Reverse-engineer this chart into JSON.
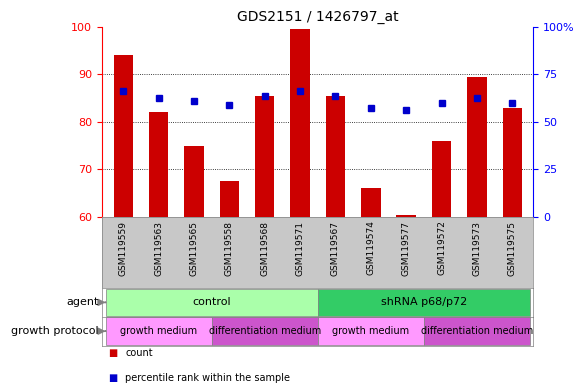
{
  "title": "GDS2151 / 1426797_at",
  "samples": [
    "GSM119559",
    "GSM119563",
    "GSM119565",
    "GSM119558",
    "GSM119568",
    "GSM119571",
    "GSM119567",
    "GSM119574",
    "GSM119577",
    "GSM119572",
    "GSM119573",
    "GSM119575"
  ],
  "bar_values": [
    94,
    82,
    75,
    67.5,
    85.5,
    99.5,
    85.5,
    66,
    60.5,
    76,
    89.5,
    83
  ],
  "dot_values": [
    86.5,
    85,
    84.5,
    83.5,
    85.5,
    86.5,
    85.5,
    83,
    82.5,
    84,
    85,
    84
  ],
  "ylim": [
    60,
    100
  ],
  "y2lim": [
    0,
    100
  ],
  "y2ticks": [
    0,
    25,
    50,
    75,
    100
  ],
  "y2ticklabels": [
    "0",
    "25",
    "50",
    "75",
    "100%"
  ],
  "yticks": [
    60,
    70,
    80,
    90,
    100
  ],
  "bar_color": "#cc0000",
  "dot_color": "#0000cc",
  "bg_color": "#ffffff",
  "tick_area_color": "#c8c8c8",
  "agent_colors": [
    "#aaffaa",
    "#33cc66"
  ],
  "agent_texts": [
    "control",
    "shRNA p68/p72"
  ],
  "agent_starts": [
    0,
    6
  ],
  "agent_ends": [
    6,
    12
  ],
  "growth_colors": [
    "#ff99ff",
    "#cc55cc",
    "#ff99ff",
    "#cc55cc"
  ],
  "growth_texts": [
    "growth medium",
    "differentiation medium",
    "growth medium",
    "differentiation medium"
  ],
  "growth_starts": [
    0,
    3,
    6,
    9
  ],
  "growth_ends": [
    3,
    6,
    9,
    12
  ],
  "agent_label": "agent",
  "growth_label": "growth protocol",
  "legend_count_color": "#cc0000",
  "legend_pct_color": "#0000cc",
  "legend_count_text": "count",
  "legend_pct_text": "percentile rank within the sample"
}
